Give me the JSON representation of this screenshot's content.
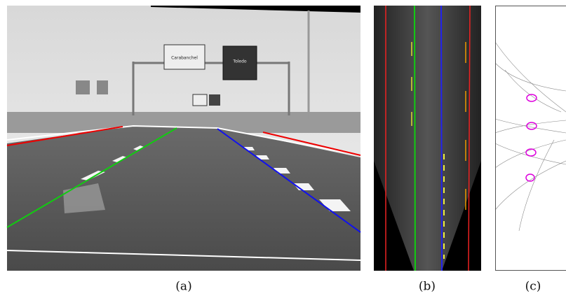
{
  "figure": {
    "panels": [
      {
        "caption": "(a)",
        "signs": [
          "Carabanchel",
          "Toledo"
        ]
      },
      {
        "caption": "(b)"
      },
      {
        "caption": "(c)"
      }
    ]
  }
}
